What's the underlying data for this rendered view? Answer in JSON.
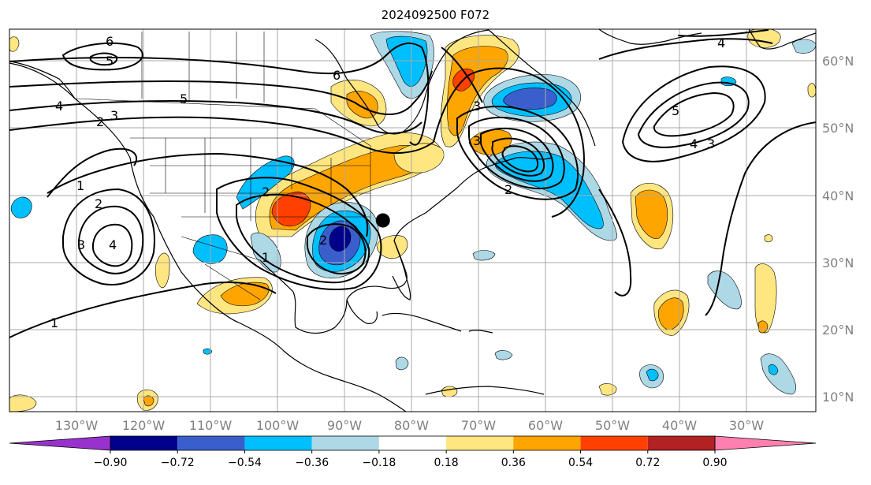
{
  "title": "2024092500 F072",
  "colors": {
    "background": "#ffffff",
    "grid": "#a9a9a9",
    "coast": "#000000",
    "contour": "#000000",
    "marker": "#000000",
    "tick_label": "#808080"
  },
  "map": {
    "lon_range": [
      -142,
      -20
    ],
    "lat_range": [
      8,
      66
    ],
    "lon_ticks": [
      "130°W",
      "120°W",
      "110°W",
      "100°W",
      "90°W",
      "80°W",
      "70°W",
      "60°W",
      "50°W",
      "40°W",
      "30°W"
    ],
    "lat_ticks": [
      "60°N",
      "50°N",
      "40°N",
      "30°N",
      "20°N",
      "10°N"
    ],
    "marker": {
      "lon": -85.5,
      "lat": 37
    },
    "contour_labels": [
      "6",
      "5",
      "6",
      "5",
      "4",
      "3",
      "2",
      "1",
      "2",
      "3",
      "4",
      "1",
      "1",
      "2",
      "2",
      "3",
      "3",
      "2",
      "4",
      "5",
      "4",
      "3"
    ]
  },
  "colorbar": {
    "colors": [
      "#9932cc",
      "#00008b",
      "#3a5fcd",
      "#00bfff",
      "#add8e6",
      "#ffffff",
      "#ffe680",
      "#ffa500",
      "#ff4000",
      "#b22222",
      "#ff80b0"
    ],
    "labels": [
      "−0.90",
      "−0.72",
      "−0.54",
      "−0.36",
      "−0.18",
      "0.18",
      "0.36",
      "0.54",
      "0.72",
      "0.90"
    ]
  }
}
